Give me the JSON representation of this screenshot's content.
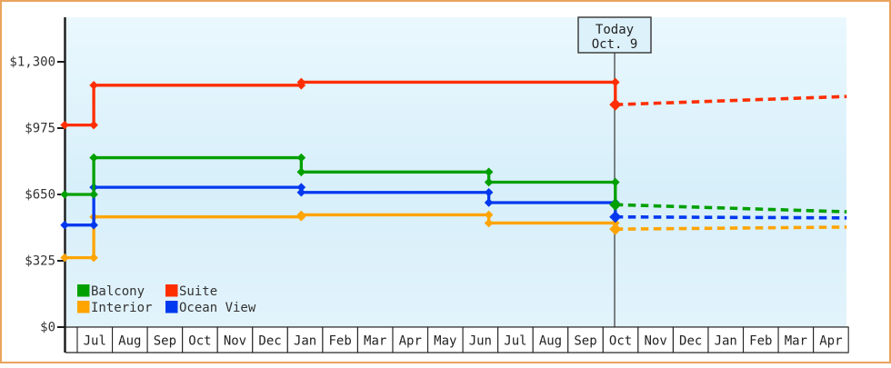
{
  "frame": {
    "border_color": "#E9A45C",
    "background": "#FFFFFF"
  },
  "chart_data": {
    "type": "line",
    "title": "",
    "description": "Cabin price history by category, step lines with forecast (dashed) after today",
    "today_marker": {
      "line1": "Today",
      "line2": "Oct. 9",
      "month_position": 15.35
    },
    "y_axis": {
      "tick_labels": [
        "$1,300",
        "$975",
        "$650",
        "$325",
        "$0"
      ],
      "tick_values": [
        1300,
        975,
        650,
        325,
        0
      ],
      "range": [
        0,
        1300
      ],
      "grid": "off"
    },
    "x_axis": {
      "month_labels": [
        "Jul",
        "Aug",
        "Sep",
        "Oct",
        "Nov",
        "Dec",
        "Jan",
        "Feb",
        "Mar",
        "Apr",
        "May",
        "Jun",
        "Jul",
        "Aug",
        "Sep",
        "Oct",
        "Nov",
        "Dec",
        "Jan",
        "Feb",
        "Mar",
        "Apr"
      ]
    },
    "series": [
      {
        "name": "Interior",
        "color": "#FFA400",
        "points_solid": [
          [
            -0.36,
            340
          ],
          [
            0.47,
            340
          ],
          [
            0.47,
            540
          ],
          [
            6.39,
            540
          ],
          [
            6.39,
            550
          ],
          [
            11.74,
            550
          ],
          [
            11.74,
            510
          ],
          [
            15.35,
            510
          ],
          [
            15.35,
            480
          ]
        ],
        "points_forecast": [
          [
            15.35,
            480
          ],
          [
            21.95,
            490
          ]
        ]
      },
      {
        "name": "Ocean View",
        "color": "#0038EF",
        "points_solid": [
          [
            -0.36,
            500
          ],
          [
            0.47,
            500
          ],
          [
            0.47,
            685
          ],
          [
            6.39,
            685
          ],
          [
            6.39,
            660
          ],
          [
            11.74,
            660
          ],
          [
            11.74,
            610
          ],
          [
            15.35,
            610
          ],
          [
            15.35,
            540
          ]
        ],
        "points_forecast": [
          [
            15.35,
            540
          ],
          [
            21.95,
            535
          ]
        ]
      },
      {
        "name": "Balcony",
        "color": "#00A000",
        "points_solid": [
          [
            -0.36,
            650
          ],
          [
            0.47,
            650
          ],
          [
            0.47,
            830
          ],
          [
            6.39,
            830
          ],
          [
            6.39,
            760
          ],
          [
            11.74,
            760
          ],
          [
            11.74,
            710
          ],
          [
            15.35,
            710
          ],
          [
            15.35,
            600
          ]
        ],
        "points_forecast": [
          [
            15.35,
            600
          ],
          [
            21.95,
            565
          ]
        ]
      },
      {
        "name": "Suite",
        "color": "#FF2E00",
        "points_solid": [
          [
            -0.36,
            990
          ],
          [
            0.47,
            990
          ],
          [
            0.47,
            1185
          ],
          [
            6.39,
            1185
          ],
          [
            6.39,
            1200
          ],
          [
            15.35,
            1200
          ],
          [
            15.35,
            1090
          ]
        ],
        "points_forecast": [
          [
            15.35,
            1090
          ],
          [
            21.95,
            1130
          ]
        ]
      }
    ],
    "legend": [
      {
        "label": "Balcony",
        "color": "#00A000"
      },
      {
        "label": "Suite",
        "color": "#FF2E00"
      },
      {
        "label": "Interior",
        "color": "#FFA400"
      },
      {
        "label": "Ocean View",
        "color": "#0038EF"
      }
    ],
    "styles": {
      "plot_bg_top": "#EAF8FE",
      "plot_bg_mid": "#D7EFFA",
      "plot_bg_bottom": "#E2F3FB",
      "axis_color": "#1A1A1A",
      "text_color": "#333333",
      "today_line_color": "#444444",
      "today_box_fill": "#DDF1FB"
    }
  }
}
